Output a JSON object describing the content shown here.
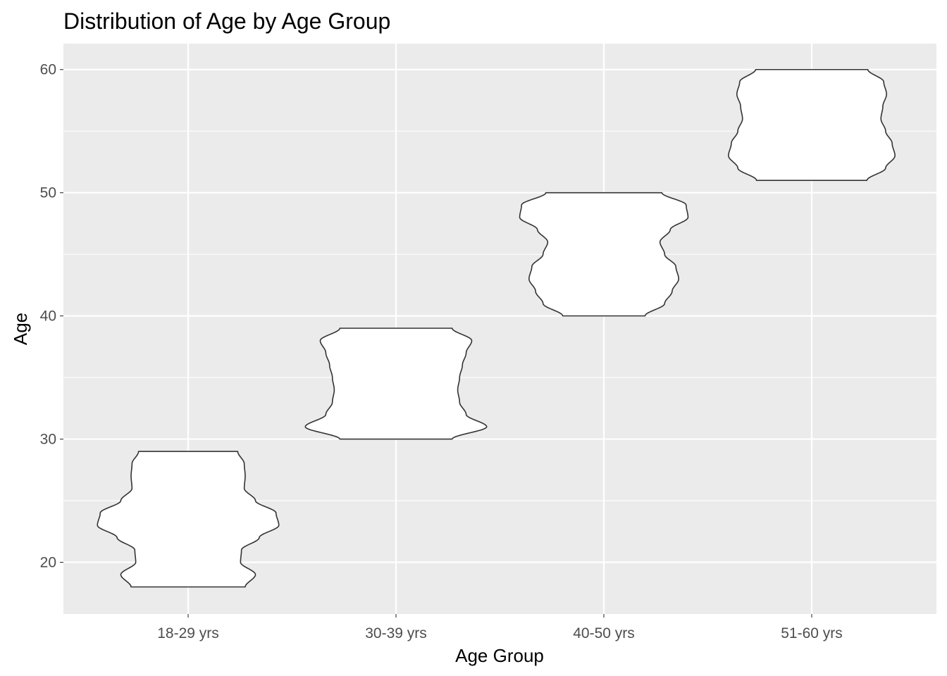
{
  "chart_data": {
    "type": "violin",
    "title": "Distribution of Age by Age Group",
    "xlabel": "Age Group",
    "ylabel": "Age",
    "categories": [
      "18-29 yrs",
      "30-39 yrs",
      "40-50 yrs",
      "51-60 yrs"
    ],
    "ylim": [
      15.8,
      62.1
    ],
    "yticks": [
      20,
      30,
      40,
      50,
      60
    ],
    "grid": true,
    "legend": "none",
    "colors": {
      "panel": "#ebebeb",
      "grid": "#ffffff",
      "violin_fill": "#ffffff",
      "violin_outline": "#333333",
      "tick_text": "#4d4d4d"
    },
    "violins": [
      {
        "category": "18-29 yrs",
        "min": 18,
        "max": 29,
        "profile": [
          [
            18,
            0.61
          ],
          [
            19,
            0.72
          ],
          [
            20,
            0.56
          ],
          [
            21,
            0.57
          ],
          [
            22,
            0.76
          ],
          [
            23,
            0.97
          ],
          [
            24,
            0.94
          ],
          [
            25,
            0.72
          ],
          [
            26,
            0.6
          ],
          [
            27,
            0.61
          ],
          [
            28,
            0.6
          ],
          [
            29,
            0.53
          ]
        ]
      },
      {
        "category": "30-39 yrs",
        "min": 30,
        "max": 39,
        "profile": [
          [
            30,
            0.6
          ],
          [
            31,
            0.97
          ],
          [
            32,
            0.75
          ],
          [
            33,
            0.68
          ],
          [
            34,
            0.66
          ],
          [
            35,
            0.68
          ],
          [
            36,
            0.71
          ],
          [
            37,
            0.75
          ],
          [
            38,
            0.81
          ],
          [
            39,
            0.6
          ]
        ]
      },
      {
        "category": "40-50 yrs",
        "min": 40,
        "max": 50,
        "profile": [
          [
            40,
            0.44
          ],
          [
            41,
            0.65
          ],
          [
            42,
            0.73
          ],
          [
            43,
            0.8
          ],
          [
            44,
            0.77
          ],
          [
            45,
            0.65
          ],
          [
            46,
            0.6
          ],
          [
            47,
            0.71
          ],
          [
            48,
            0.9
          ],
          [
            49,
            0.88
          ],
          [
            50,
            0.62
          ]
        ]
      },
      {
        "category": "51-60 yrs",
        "min": 51,
        "max": 60,
        "profile": [
          [
            51,
            0.59
          ],
          [
            52,
            0.79
          ],
          [
            53,
            0.89
          ],
          [
            54,
            0.86
          ],
          [
            55,
            0.79
          ],
          [
            56,
            0.74
          ],
          [
            57,
            0.76
          ],
          [
            58,
            0.8
          ],
          [
            59,
            0.77
          ],
          [
            60,
            0.6
          ]
        ]
      }
    ]
  }
}
